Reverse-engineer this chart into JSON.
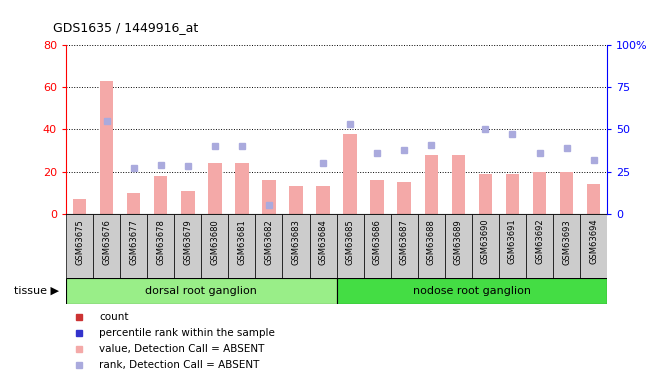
{
  "title": "GDS1635 / 1449916_at",
  "categories": [
    "GSM63675",
    "GSM63676",
    "GSM63677",
    "GSM63678",
    "GSM63679",
    "GSM63680",
    "GSM63681",
    "GSM63682",
    "GSM63683",
    "GSM63684",
    "GSM63685",
    "GSM63686",
    "GSM63687",
    "GSM63688",
    "GSM63689",
    "GSM63690",
    "GSM63691",
    "GSM63692",
    "GSM63693",
    "GSM63694"
  ],
  "bar_values": [
    7,
    63,
    10,
    18,
    11,
    24,
    24,
    16,
    13,
    13,
    38,
    16,
    15,
    28,
    28,
    19,
    19,
    20,
    20,
    14
  ],
  "dot_values": [
    null,
    55,
    27,
    29,
    28,
    40,
    40,
    5,
    null,
    30,
    53,
    36,
    38,
    41,
    null,
    50,
    47,
    36,
    39,
    32
  ],
  "ylim_left": [
    0,
    80
  ],
  "ylim_right": [
    0,
    100
  ],
  "yticks_left": [
    0,
    20,
    40,
    60,
    80
  ],
  "yticks_right": [
    0,
    25,
    50,
    75,
    100
  ],
  "ytick_labels_left": [
    "0",
    "20",
    "40",
    "60",
    "80"
  ],
  "ytick_labels_right": [
    "0",
    "25",
    "50",
    "75",
    "100%"
  ],
  "bar_color": "#F4A9A8",
  "dot_color": "#AAAADD",
  "bar_color_solid": "#CC3333",
  "dot_color_solid": "#3333CC",
  "tissue_groups": [
    {
      "label": "dorsal root ganglion",
      "start": 0,
      "end": 9,
      "color": "#99EE88"
    },
    {
      "label": "nodose root ganglion",
      "start": 10,
      "end": 19,
      "color": "#44DD44"
    }
  ],
  "tissue_label": "tissue",
  "legend_items": [
    {
      "color": "#CC3333",
      "label": "count"
    },
    {
      "color": "#3333CC",
      "label": "percentile rank within the sample"
    },
    {
      "color": "#F4A9A8",
      "label": "value, Detection Call = ABSENT"
    },
    {
      "color": "#AAAADD",
      "label": "rank, Detection Call = ABSENT"
    }
  ]
}
